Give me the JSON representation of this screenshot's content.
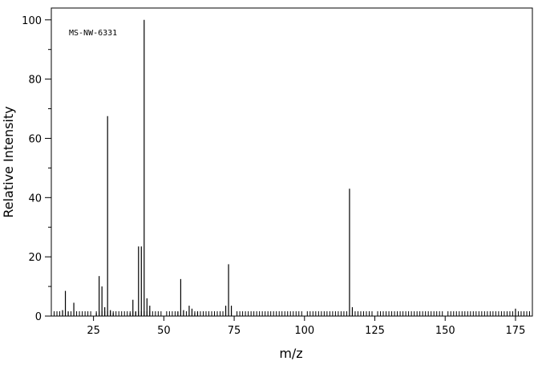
{
  "chart_data": {
    "type": "bar",
    "title": "",
    "annotation": "MS-NW-6331",
    "xlabel": "m/z",
    "ylabel": "Relative Intensity",
    "xlim": [
      10,
      181
    ],
    "ylim": [
      0,
      104
    ],
    "xticks": [
      25,
      50,
      75,
      100,
      125,
      150,
      175
    ],
    "yticks": [
      0,
      20,
      40,
      60,
      80,
      100
    ],
    "grid": false,
    "peaks": [
      {
        "mz": 14,
        "intensity": 2.0
      },
      {
        "mz": 15,
        "intensity": 8.5
      },
      {
        "mz": 16,
        "intensity": 1.5
      },
      {
        "mz": 18,
        "intensity": 4.5
      },
      {
        "mz": 26,
        "intensity": 1.0
      },
      {
        "mz": 27,
        "intensity": 13.5
      },
      {
        "mz": 28,
        "intensity": 10.0
      },
      {
        "mz": 29,
        "intensity": 3.0
      },
      {
        "mz": 30,
        "intensity": 67.5
      },
      {
        "mz": 31,
        "intensity": 2.0
      },
      {
        "mz": 32,
        "intensity": 1.0
      },
      {
        "mz": 38,
        "intensity": 1.0
      },
      {
        "mz": 39,
        "intensity": 5.5
      },
      {
        "mz": 40,
        "intensity": 1.5
      },
      {
        "mz": 41,
        "intensity": 23.5
      },
      {
        "mz": 42,
        "intensity": 23.5
      },
      {
        "mz": 43,
        "intensity": 100
      },
      {
        "mz": 44,
        "intensity": 6.0
      },
      {
        "mz": 45,
        "intensity": 3.5
      },
      {
        "mz": 55,
        "intensity": 1.5
      },
      {
        "mz": 56,
        "intensity": 12.5
      },
      {
        "mz": 57,
        "intensity": 2.0
      },
      {
        "mz": 59,
        "intensity": 3.5
      },
      {
        "mz": 60,
        "intensity": 2.5
      },
      {
        "mz": 61,
        "intensity": 1.0
      },
      {
        "mz": 62,
        "intensity": 1.5
      },
      {
        "mz": 72,
        "intensity": 3.5
      },
      {
        "mz": 73,
        "intensity": 17.5
      },
      {
        "mz": 74,
        "intensity": 3.5
      },
      {
        "mz": 116,
        "intensity": 43.0
      },
      {
        "mz": 117,
        "intensity": 3.0
      },
      {
        "mz": 175,
        "intensity": 2.5
      }
    ]
  }
}
